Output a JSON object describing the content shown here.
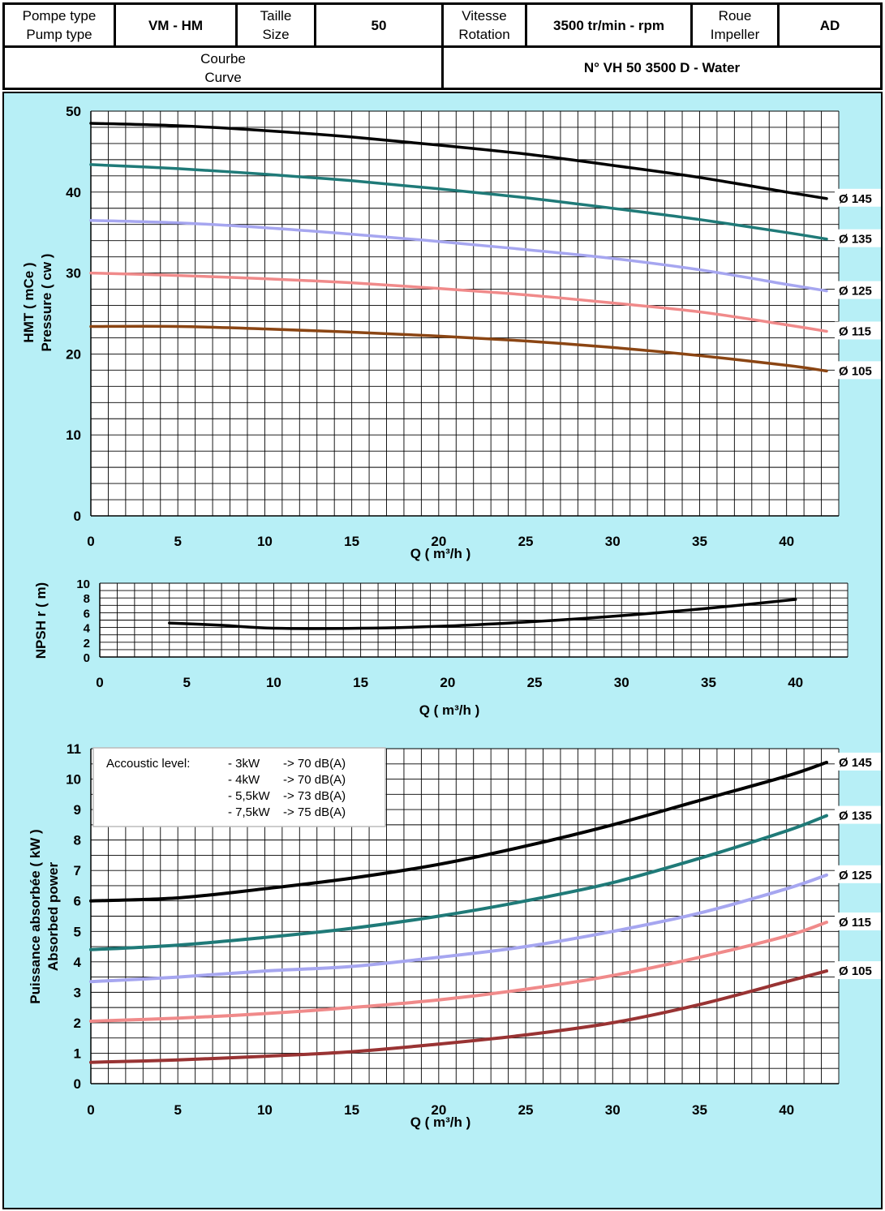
{
  "header": {
    "pump_type_label_fr": "Pompe type",
    "pump_type_label_en": "Pump type",
    "pump_type_value": "VM - HM",
    "size_label_fr": "Taille",
    "size_label_en": "Size",
    "size_value": "50",
    "rotation_label_fr": "Vitesse",
    "rotation_label_en": "Rotation",
    "rotation_value": "3500 tr/min - rpm",
    "impeller_label_fr": "Roue",
    "impeller_label_en": "Impeller",
    "impeller_value": "AD",
    "curve_label_fr": "Courbe",
    "curve_label_en": "Curve",
    "curve_value": "N° VH 50 3500 D - Water"
  },
  "colors": {
    "panel_bg": "#b7eff6",
    "d145": "#000000",
    "d135": "#1f7a78",
    "d125": "#a6a6f0",
    "d115": "#f08a8a",
    "d105_hmt": "#8b4513",
    "d105_power": "#993333"
  },
  "chart_data": [
    {
      "id": "hmt",
      "type": "line",
      "xlabel": "Q ( m³/h )",
      "ylabel": "HMT ( mCe )",
      "ylabel2": "Pressure ( cw )",
      "xlim": [
        0,
        43
      ],
      "ylim": [
        0,
        50
      ],
      "xticks": [
        0,
        5,
        10,
        15,
        20,
        25,
        30,
        35,
        40
      ],
      "yticks": [
        0,
        10,
        20,
        30,
        40,
        50
      ],
      "grid": true,
      "series": [
        {
          "name": "Ø 145",
          "color": "#000000",
          "x": [
            0,
            5,
            10,
            15,
            20,
            25,
            30,
            35,
            40,
            42.3
          ],
          "y": [
            48.5,
            48.2,
            47.6,
            46.8,
            45.8,
            44.7,
            43.3,
            41.8,
            40.0,
            39.2
          ]
        },
        {
          "name": "Ø 135",
          "color": "#1f7a78",
          "x": [
            0,
            5,
            10,
            15,
            20,
            25,
            30,
            35,
            40,
            42.3
          ],
          "y": [
            43.4,
            42.9,
            42.2,
            41.4,
            40.4,
            39.3,
            38.0,
            36.6,
            35.0,
            34.2
          ]
        },
        {
          "name": "Ø 125",
          "color": "#a6a6f0",
          "x": [
            0,
            5,
            10,
            15,
            20,
            25,
            30,
            35,
            40,
            42.3
          ],
          "y": [
            36.5,
            36.2,
            35.6,
            34.8,
            33.9,
            32.9,
            31.8,
            30.4,
            28.6,
            27.8
          ]
        },
        {
          "name": "Ø 115",
          "color": "#f08a8a",
          "x": [
            0,
            5,
            10,
            15,
            20,
            25,
            30,
            35,
            40,
            42.3
          ],
          "y": [
            30.0,
            29.7,
            29.3,
            28.8,
            28.1,
            27.3,
            26.3,
            25.2,
            23.6,
            22.8
          ]
        },
        {
          "name": "Ø 105",
          "color": "#8b4513",
          "x": [
            0,
            5,
            10,
            15,
            20,
            25,
            30,
            35,
            40,
            42.3
          ],
          "y": [
            23.4,
            23.4,
            23.1,
            22.7,
            22.2,
            21.6,
            20.8,
            19.8,
            18.6,
            17.9
          ]
        }
      ]
    },
    {
      "id": "npsh",
      "type": "line",
      "xlabel": "Q ( m³/h )",
      "ylabel": "NPSH r ( m)",
      "xlim": [
        0,
        43
      ],
      "ylim": [
        0,
        10
      ],
      "xticks": [
        0,
        5,
        10,
        15,
        20,
        25,
        30,
        35,
        40
      ],
      "yticks": [
        0,
        2,
        4,
        6,
        8,
        10
      ],
      "grid": true,
      "series": [
        {
          "name": "",
          "color": "#000000",
          "x": [
            4,
            7,
            10,
            15,
            20,
            25,
            30,
            35,
            40
          ],
          "y": [
            4.6,
            4.3,
            3.9,
            3.9,
            4.2,
            4.8,
            5.6,
            6.6,
            7.8
          ]
        }
      ]
    },
    {
      "id": "power",
      "type": "line",
      "xlabel": "Q ( m³/h )",
      "ylabel": "Puissance absorbée ( kW )",
      "ylabel2": "Absorbed power",
      "xlim": [
        0,
        43
      ],
      "ylim": [
        0,
        11
      ],
      "xticks": [
        0,
        5,
        10,
        15,
        20,
        25,
        30,
        35,
        40
      ],
      "yticks": [
        0,
        1,
        2,
        3,
        4,
        5,
        6,
        7,
        8,
        9,
        10,
        11
      ],
      "grid": true,
      "annotation": {
        "title": "Accoustic level:",
        "lines": [
          [
            "- 3kW",
            "-> 70 dB(A)"
          ],
          [
            "- 4kW",
            "-> 70 dB(A)"
          ],
          [
            "- 5,5kW",
            "-> 73 dB(A)"
          ],
          [
            "- 7,5kW",
            "-> 75 dB(A)"
          ]
        ]
      },
      "series": [
        {
          "name": "Ø 145",
          "color": "#000000",
          "x": [
            0,
            5,
            10,
            15,
            20,
            25,
            30,
            35,
            40,
            42.3
          ],
          "y": [
            6.0,
            6.1,
            6.4,
            6.75,
            7.2,
            7.8,
            8.5,
            9.3,
            10.1,
            10.55
          ]
        },
        {
          "name": "Ø 135",
          "color": "#1f7a78",
          "x": [
            0,
            5,
            10,
            15,
            20,
            25,
            30,
            35,
            40,
            42.3
          ],
          "y": [
            4.4,
            4.55,
            4.8,
            5.1,
            5.5,
            6.0,
            6.6,
            7.4,
            8.3,
            8.8
          ]
        },
        {
          "name": "Ø 125",
          "color": "#a6a6f0",
          "x": [
            0,
            5,
            10,
            15,
            20,
            25,
            30,
            35,
            40,
            42.3
          ],
          "y": [
            3.35,
            3.5,
            3.7,
            3.85,
            4.15,
            4.5,
            5.0,
            5.6,
            6.4,
            6.85
          ]
        },
        {
          "name": "Ø 115",
          "color": "#f08a8a",
          "x": [
            0,
            5,
            10,
            15,
            20,
            25,
            30,
            35,
            40,
            42.3
          ],
          "y": [
            2.05,
            2.15,
            2.3,
            2.5,
            2.75,
            3.1,
            3.55,
            4.15,
            4.85,
            5.3
          ]
        },
        {
          "name": "Ø 105",
          "color": "#993333",
          "x": [
            0,
            5,
            10,
            15,
            20,
            25,
            30,
            35,
            40,
            42.3
          ],
          "y": [
            0.7,
            0.78,
            0.9,
            1.05,
            1.3,
            1.6,
            2.0,
            2.6,
            3.35,
            3.7
          ]
        }
      ]
    }
  ]
}
